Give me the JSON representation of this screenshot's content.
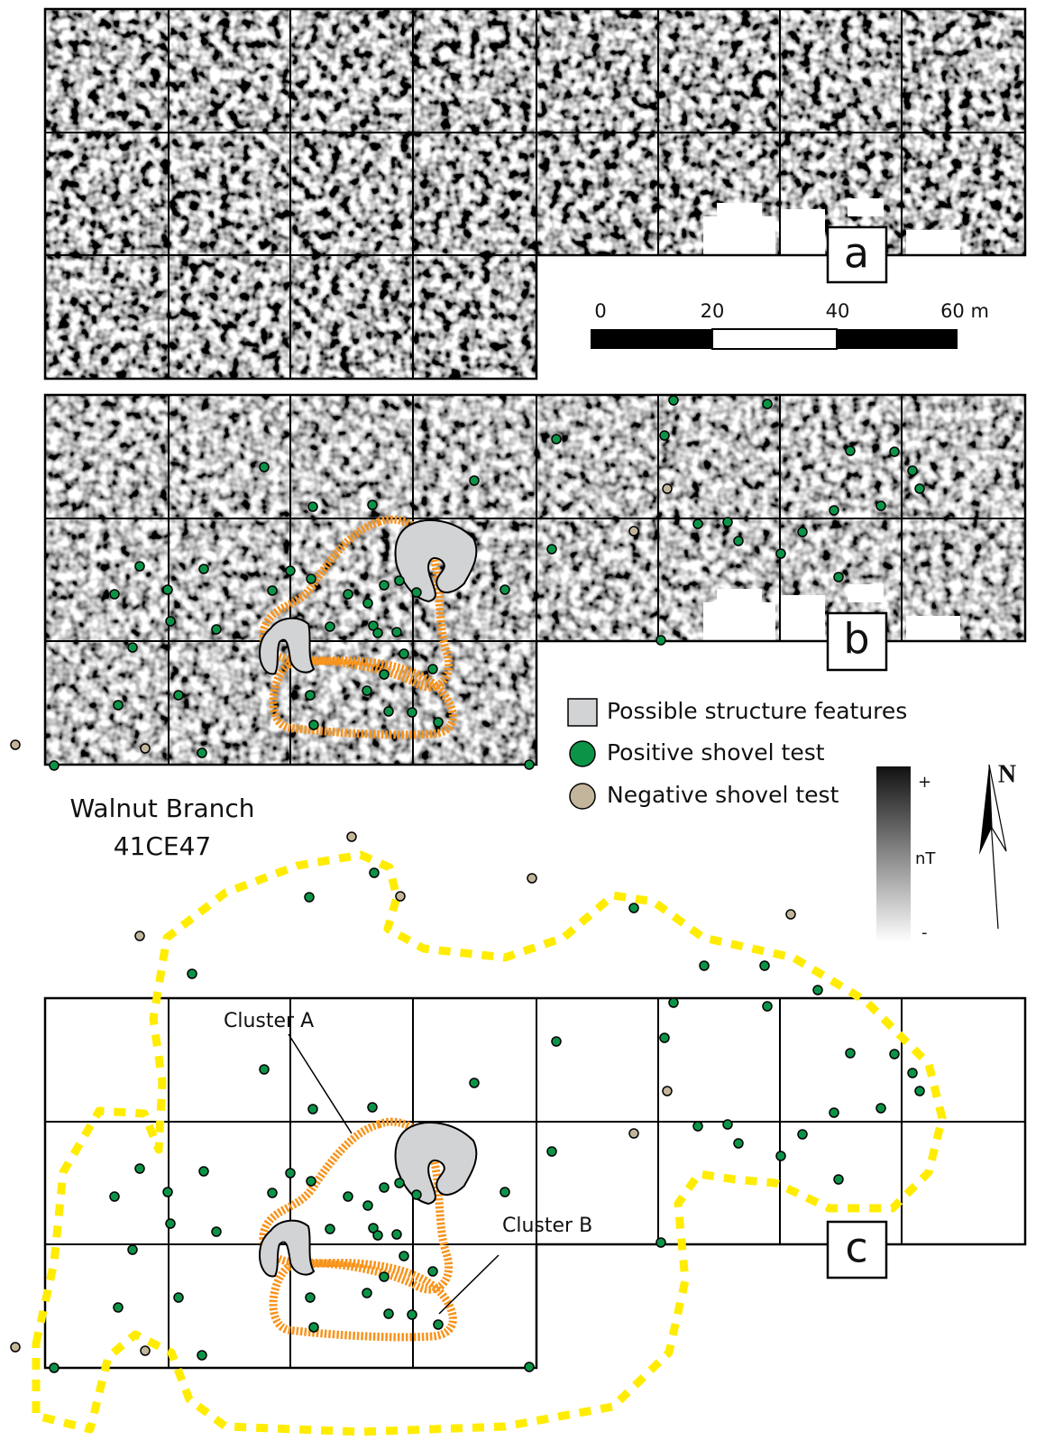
{
  "panel_labels": [
    "a",
    "b",
    "c"
  ],
  "scale_bar": {
    "labels": [
      "0",
      "20",
      "40",
      "60 m"
    ]
  },
  "legend": {
    "items": [
      "Possible structure features",
      "Positive shovel test",
      "Negative shovel test"
    ]
  },
  "site": {
    "name": "Walnut Branch",
    "code": "41CE47"
  },
  "color_scale": {
    "max_label": "+",
    "unit": "nT",
    "min_label": "-"
  },
  "north_label": "N",
  "clusters": [
    "Cluster A",
    "Cluster B"
  ]
}
